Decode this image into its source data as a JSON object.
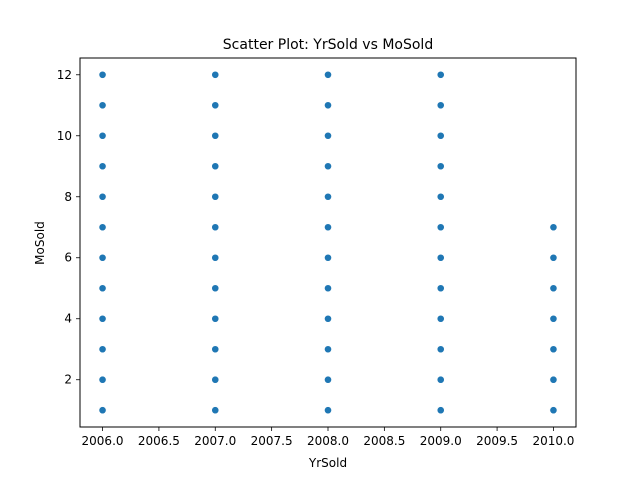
{
  "chart_data": {
    "type": "scatter",
    "title": "Scatter Plot: YrSold vs MoSold",
    "xlabel": "YrSold",
    "ylabel": "MoSold",
    "xlim": [
      2005.8,
      2010.2
    ],
    "ylim": [
      0.45,
      12.55
    ],
    "xticks": [
      2006.0,
      2006.5,
      2007.0,
      2007.5,
      2008.0,
      2008.5,
      2009.0,
      2009.5,
      2010.0
    ],
    "xtick_labels": [
      "2006.0",
      "2006.5",
      "2007.0",
      "2007.5",
      "2008.0",
      "2008.5",
      "2009.0",
      "2009.5",
      "2010.0"
    ],
    "yticks": [
      2,
      4,
      6,
      8,
      10,
      12
    ],
    "ytick_labels": [
      "2",
      "4",
      "6",
      "8",
      "10",
      "12"
    ],
    "grid": false,
    "marker_color": "#1f77b4",
    "points": [
      [
        2006,
        1
      ],
      [
        2006,
        2
      ],
      [
        2006,
        3
      ],
      [
        2006,
        4
      ],
      [
        2006,
        5
      ],
      [
        2006,
        6
      ],
      [
        2006,
        7
      ],
      [
        2006,
        8
      ],
      [
        2006,
        9
      ],
      [
        2006,
        10
      ],
      [
        2006,
        11
      ],
      [
        2006,
        12
      ],
      [
        2007,
        1
      ],
      [
        2007,
        2
      ],
      [
        2007,
        3
      ],
      [
        2007,
        4
      ],
      [
        2007,
        5
      ],
      [
        2007,
        6
      ],
      [
        2007,
        7
      ],
      [
        2007,
        8
      ],
      [
        2007,
        9
      ],
      [
        2007,
        10
      ],
      [
        2007,
        11
      ],
      [
        2007,
        12
      ],
      [
        2008,
        1
      ],
      [
        2008,
        2
      ],
      [
        2008,
        3
      ],
      [
        2008,
        4
      ],
      [
        2008,
        5
      ],
      [
        2008,
        6
      ],
      [
        2008,
        7
      ],
      [
        2008,
        8
      ],
      [
        2008,
        9
      ],
      [
        2008,
        10
      ],
      [
        2008,
        11
      ],
      [
        2008,
        12
      ],
      [
        2009,
        1
      ],
      [
        2009,
        2
      ],
      [
        2009,
        3
      ],
      [
        2009,
        4
      ],
      [
        2009,
        5
      ],
      [
        2009,
        6
      ],
      [
        2009,
        7
      ],
      [
        2009,
        8
      ],
      [
        2009,
        9
      ],
      [
        2009,
        10
      ],
      [
        2009,
        11
      ],
      [
        2009,
        12
      ],
      [
        2010,
        1
      ],
      [
        2010,
        2
      ],
      [
        2010,
        3
      ],
      [
        2010,
        4
      ],
      [
        2010,
        5
      ],
      [
        2010,
        6
      ],
      [
        2010,
        7
      ]
    ]
  }
}
